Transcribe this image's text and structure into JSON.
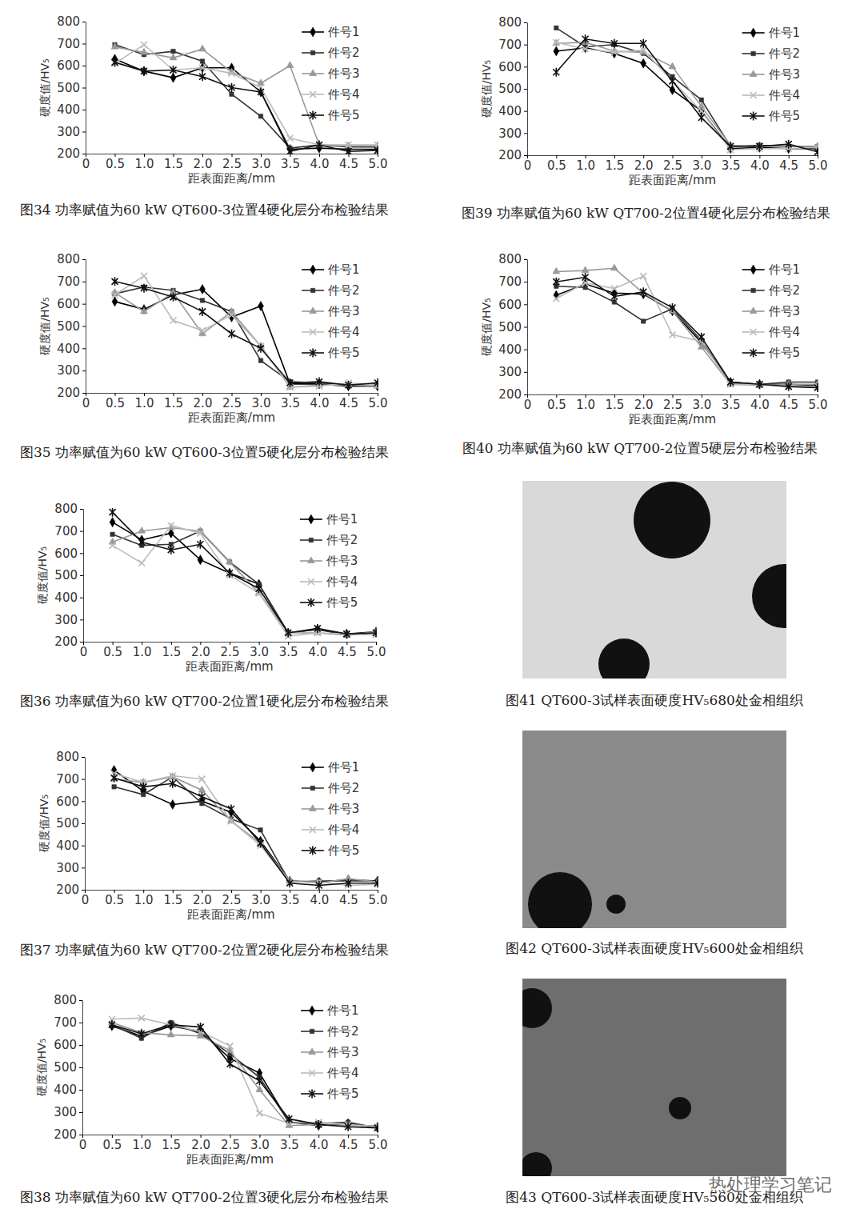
{
  "chart_data": [
    {
      "type": "line",
      "title": "图34  功率赋值为60 kW QT600-3位置4硬化层分布检验结果",
      "xlabel": "距表面距离/mm",
      "ylabel": "硬度值/HV₅",
      "x": [
        0.5,
        1.0,
        1.5,
        2.0,
        2.5,
        3.0,
        3.5,
        4.0,
        4.5,
        5.0
      ],
      "xlim": [
        0,
        5
      ],
      "xticks": [
        0,
        0.5,
        {
          "value": 1,
          "label": "1.0"
        },
        1.5,
        {
          "value": 2,
          "label": "2.0"
        },
        2.5,
        {
          "value": 3,
          "label": "3.0"
        },
        3.5,
        {
          "value": 4,
          "label": "4.0"
        },
        4.5,
        {
          "value": 5,
          "label": "5.0"
        }
      ],
      "ylim": [
        200,
        800
      ],
      "yticks": [
        200,
        300,
        400,
        500,
        600,
        700,
        800
      ],
      "legend": "upper right",
      "series": [
        {
          "name": "件号1",
          "color": "#000000",
          "marker": "diamond",
          "values": [
            630,
            575,
            545,
            590,
            590,
            480,
            220,
            225,
            220,
            220
          ]
        },
        {
          "name": "件号2",
          "color": "#333333",
          "marker": "square",
          "values": [
            695,
            650,
            665,
            620,
            470,
            370,
            225,
            240,
            230,
            230
          ]
        },
        {
          "name": "件号3",
          "color": "#999999",
          "marker": "triangle",
          "values": [
            685,
            660,
            635,
            675,
            570,
            520,
            600,
            240,
            235,
            235
          ]
        },
        {
          "name": "件号4",
          "color": "#bbbbbb",
          "marker": "x",
          "values": [
            610,
            695,
            580,
            590,
            565,
            500,
            270,
            240,
            240,
            240
          ]
        },
        {
          "name": "件号5",
          "color": "#111111",
          "marker": "star",
          "values": [
            615,
            575,
            580,
            550,
            500,
            480,
            210,
            240,
            210,
            215
          ]
        }
      ]
    },
    {
      "type": "line",
      "title": "图35  功率赋值为60 kW QT600-3位置5硬化层分布检验结果",
      "xlabel": "距表面距离/mm",
      "ylabel": "硬度值/HV₅",
      "x": [
        0.5,
        1.0,
        1.5,
        2.0,
        2.5,
        3.0,
        3.5,
        4.0,
        4.5,
        5.0
      ],
      "xlim": [
        0,
        5
      ],
      "xticks": [
        0,
        0.5,
        {
          "value": 1,
          "label": "1.0"
        },
        1.5,
        {
          "value": 2,
          "label": "2.0"
        },
        2.5,
        {
          "value": 3,
          "label": "3.0"
        },
        3.5,
        {
          "value": 4,
          "label": "4.0"
        },
        4.5,
        {
          "value": 5,
          "label": "5.0"
        }
      ],
      "ylim": [
        200,
        800
      ],
      "yticks": [
        200,
        300,
        400,
        500,
        600,
        700,
        800
      ],
      "legend": "upper right",
      "series": [
        {
          "name": "件号1",
          "color": "#000000",
          "marker": "diamond",
          "values": [
            610,
            575,
            640,
            665,
            540,
            590,
            240,
            240,
            230,
            230
          ]
        },
        {
          "name": "件号2",
          "color": "#333333",
          "marker": "square",
          "values": [
            645,
            675,
            660,
            615,
            565,
            345,
            250,
            245,
            235,
            240
          ]
        },
        {
          "name": "件号3",
          "color": "#999999",
          "marker": "triangle",
          "values": [
            650,
            565,
            650,
            465,
            565,
            410,
            225,
            235,
            235,
            230
          ]
        },
        {
          "name": "件号4",
          "color": "#bbbbbb",
          "marker": "x",
          "values": [
            640,
            725,
            525,
            480,
            550,
            410,
            225,
            230,
            245,
            235
          ]
        },
        {
          "name": "件号5",
          "color": "#111111",
          "marker": "star",
          "values": [
            700,
            670,
            630,
            565,
            465,
            400,
            245,
            250,
            235,
            245
          ]
        }
      ]
    },
    {
      "type": "line",
      "title": "图36  功率赋值为60 kW QT700-2位置1硬化层分布检验结果",
      "xlabel": "距表面距离/mm",
      "ylabel": "硬度值/HV₅",
      "x": [
        0.5,
        1.0,
        1.5,
        2.0,
        2.5,
        3.0,
        3.5,
        4.0,
        4.5,
        5.0
      ],
      "xlim": [
        0,
        5
      ],
      "xticks": [
        0,
        0.5,
        {
          "value": 1,
          "label": "1.0"
        },
        1.5,
        {
          "value": 2,
          "label": "2.0"
        },
        2.5,
        {
          "value": 3,
          "label": "3.0"
        },
        3.5,
        {
          "value": 4,
          "label": "4.0"
        },
        4.5,
        {
          "value": 5,
          "label": "5.0"
        }
      ],
      "ylim": [
        200,
        800
      ],
      "yticks": [
        200,
        300,
        400,
        500,
        600,
        700,
        800
      ],
      "legend": "upper right",
      "series": [
        {
          "name": "件号1",
          "color": "#000000",
          "marker": "diamond",
          "values": [
            740,
            660,
            690,
            570,
            510,
            460,
            240,
            255,
            235,
            245
          ]
        },
        {
          "name": "件号2",
          "color": "#333333",
          "marker": "square",
          "values": [
            685,
            635,
            640,
            700,
            560,
            460,
            240,
            255,
            230,
            240
          ]
        },
        {
          "name": "件号3",
          "color": "#999999",
          "marker": "triangle",
          "values": [
            650,
            700,
            715,
            700,
            560,
            420,
            240,
            240,
            230,
            245
          ]
        },
        {
          "name": "件号4",
          "color": "#bbbbbb",
          "marker": "x",
          "values": [
            635,
            555,
            725,
            690,
            500,
            420,
            225,
            240,
            235,
            230
          ]
        },
        {
          "name": "件号5",
          "color": "#111111",
          "marker": "star",
          "values": [
            785,
            650,
            615,
            640,
            510,
            440,
            240,
            260,
            235,
            240
          ]
        }
      ]
    },
    {
      "type": "line",
      "title": "图37  功率赋值为60 kW QT700-2位置2硬化层分布检验结果",
      "xlabel": "距表面距离/mm",
      "ylabel": "硬度值/HV₅",
      "x": [
        0.5,
        1.0,
        1.5,
        2.0,
        2.5,
        3.0,
        3.5,
        4.0,
        4.5,
        5.0
      ],
      "xlim": [
        0,
        5
      ],
      "xticks": [
        0,
        0.5,
        {
          "value": 1,
          "label": "1.0"
        },
        1.5,
        {
          "value": 2,
          "label": "2.0"
        },
        2.5,
        {
          "value": 3,
          "label": "3.0"
        },
        3.5,
        {
          "value": 4,
          "label": "4.0"
        },
        4.5,
        {
          "value": 5,
          "label": "5.0"
        }
      ],
      "ylim": [
        200,
        800
      ],
      "yticks": [
        200,
        300,
        400,
        500,
        600,
        700,
        800
      ],
      "legend": "upper right",
      "series": [
        {
          "name": "件号1",
          "color": "#000000",
          "marker": "diamond",
          "values": [
            740,
            645,
            585,
            600,
            550,
            420,
            240,
            235,
            245,
            240
          ]
        },
        {
          "name": "件号2",
          "color": "#333333",
          "marker": "square",
          "values": [
            665,
            630,
            710,
            590,
            520,
            470,
            235,
            240,
            240,
            240
          ]
        },
        {
          "name": "件号3",
          "color": "#999999",
          "marker": "triangle",
          "values": [
            700,
            685,
            710,
            650,
            510,
            410,
            240,
            230,
            250,
            235
          ]
        },
        {
          "name": "件号4",
          "color": "#bbbbbb",
          "marker": "x",
          "values": [
            725,
            685,
            715,
            700,
            510,
            400,
            235,
            235,
            220,
            225
          ]
        },
        {
          "name": "件号5",
          "color": "#111111",
          "marker": "star",
          "values": [
            705,
            665,
            680,
            620,
            565,
            410,
            230,
            220,
            230,
            230
          ]
        }
      ]
    },
    {
      "type": "line",
      "title": "图38  功率赋值为60 kW QT700-2位置3硬化层分布检验结果",
      "xlabel": "距表面距离/mm",
      "ylabel": "硬度值/HV₅",
      "x": [
        0.5,
        1.0,
        1.5,
        2.0,
        2.5,
        3.0,
        3.5,
        4.0,
        4.5,
        5.0
      ],
      "xlim": [
        0,
        5
      ],
      "xticks": [
        0,
        0.5,
        {
          "value": 1,
          "label": "1.0"
        },
        1.5,
        {
          "value": 2,
          "label": "2.0"
        },
        2.5,
        {
          "value": 3,
          "label": "3.0"
        },
        3.5,
        {
          "value": 4,
          "label": "4.0"
        },
        4.5,
        {
          "value": 5,
          "label": "5.0"
        }
      ],
      "ylim": [
        200,
        800
      ],
      "yticks": [
        200,
        300,
        400,
        500,
        600,
        700,
        800
      ],
      "legend": "upper right",
      "series": [
        {
          "name": "件号1",
          "color": "#000000",
          "marker": "diamond",
          "values": [
            685,
            640,
            685,
            660,
            540,
            475,
            255,
            240,
            250,
            230
          ]
        },
        {
          "name": "件号2",
          "color": "#333333",
          "marker": "square",
          "values": [
            690,
            630,
            700,
            650,
            560,
            455,
            255,
            250,
            255,
            230
          ]
        },
        {
          "name": "件号3",
          "color": "#999999",
          "marker": "triangle",
          "values": [
            700,
            655,
            645,
            640,
            575,
            400,
            240,
            245,
            240,
            240
          ]
        },
        {
          "name": "件号4",
          "color": "#bbbbbb",
          "marker": "x",
          "values": [
            715,
            720,
            690,
            660,
            595,
            295,
            250,
            255,
            245,
            235
          ]
        },
        {
          "name": "件号5",
          "color": "#111111",
          "marker": "star",
          "values": [
            690,
            650,
            690,
            680,
            515,
            440,
            270,
            245,
            235,
            230
          ]
        }
      ]
    },
    {
      "type": "line",
      "title": "图39  功率赋值为60 kW QT700-2位置4硬化层分布检验结果",
      "xlabel": "距表面距离/mm",
      "ylabel": "硬度值/HV₅",
      "x": [
        0.5,
        1.0,
        1.5,
        2.0,
        2.5,
        3.0,
        3.5,
        4.0,
        4.5,
        5.0
      ],
      "xlim": [
        0,
        5
      ],
      "xticks": [
        0,
        0.5,
        {
          "value": 1,
          "label": "1.0"
        },
        1.5,
        {
          "value": 2,
          "label": "2.0"
        },
        2.5,
        {
          "value": 3,
          "label": "3.0"
        },
        3.5,
        {
          "value": 4,
          "label": "4.0"
        },
        4.5,
        {
          "value": 5,
          "label": "5.0"
        }
      ],
      "ylim": [
        200,
        800
      ],
      "yticks": [
        200,
        300,
        400,
        500,
        600,
        700,
        800
      ],
      "legend": "upper right",
      "series": [
        {
          "name": "件号1",
          "color": "#000000",
          "marker": "diamond",
          "values": [
            670,
            685,
            660,
            615,
            495,
            400,
            230,
            235,
            230,
            230
          ]
        },
        {
          "name": "件号2",
          "color": "#333333",
          "marker": "square",
          "values": [
            775,
            690,
            700,
            660,
            555,
            450,
            240,
            245,
            240,
            240
          ]
        },
        {
          "name": "件号3",
          "color": "#999999",
          "marker": "triangle",
          "values": [
            705,
            710,
            670,
            665,
            600,
            420,
            245,
            240,
            240,
            240
          ]
        },
        {
          "name": "件号4",
          "color": "#bbbbbb",
          "marker": "x",
          "values": [
            710,
            680,
            665,
            675,
            535,
            400,
            225,
            230,
            230,
            235
          ]
        },
        {
          "name": "件号5",
          "color": "#111111",
          "marker": "star",
          "values": [
            575,
            725,
            705,
            705,
            535,
            370,
            240,
            240,
            250,
            215
          ]
        }
      ]
    },
    {
      "type": "line",
      "title": "图40  功率赋值为60 kW QT700-2位置5硬层分布检验结果",
      "xlabel": "距表面距离/mm",
      "ylabel": "硬度值/HV₅",
      "x": [
        0.5,
        1.0,
        1.5,
        2.0,
        2.5,
        3.0,
        3.5,
        4.0,
        4.5,
        5.0
      ],
      "xlim": [
        0,
        5
      ],
      "xticks": [
        0,
        0.5,
        {
          "value": 1,
          "label": "1.0"
        },
        1.5,
        {
          "value": 2,
          "label": "2.0"
        },
        2.5,
        {
          "value": 3,
          "label": "3.0"
        },
        3.5,
        {
          "value": 4,
          "label": "4.0"
        },
        4.5,
        {
          "value": 5,
          "label": "5.0"
        }
      ],
      "ylim": [
        200,
        800
      ],
      "yticks": [
        200,
        300,
        400,
        500,
        600,
        700,
        800
      ],
      "legend": "upper right",
      "series": [
        {
          "name": "件号1",
          "color": "#000000",
          "marker": "diamond",
          "values": [
            640,
            690,
            650,
            645,
            570,
            430,
            255,
            245,
            245,
            240
          ]
        },
        {
          "name": "件号2",
          "color": "#333333",
          "marker": "square",
          "values": [
            680,
            675,
            610,
            525,
            580,
            440,
            250,
            245,
            255,
            255
          ]
        },
        {
          "name": "件号3",
          "color": "#999999",
          "marker": "triangle",
          "values": [
            745,
            750,
            760,
            650,
            570,
            410,
            245,
            240,
            245,
            245
          ]
        },
        {
          "name": "件号4",
          "color": "#bbbbbb",
          "marker": "x",
          "values": [
            625,
            695,
            670,
            725,
            465,
            435,
            245,
            245,
            235,
            235
          ]
        },
        {
          "name": "件号5",
          "color": "#111111",
          "marker": "star",
          "values": [
            700,
            720,
            635,
            655,
            585,
            455,
            255,
            245,
            235,
            230
          ]
        }
      ]
    }
  ],
  "figures": [
    {
      "caption": "图41 QT600-3试样表面硬度HV₅680处金相组织"
    },
    {
      "caption": "图42 QT600-3试样表面硬度HV₅600处金相组织"
    },
    {
      "caption": "图43 QT600-3试样表面硬度HV₅560处金相组织"
    }
  ],
  "watermark": "热处理学习笔记"
}
